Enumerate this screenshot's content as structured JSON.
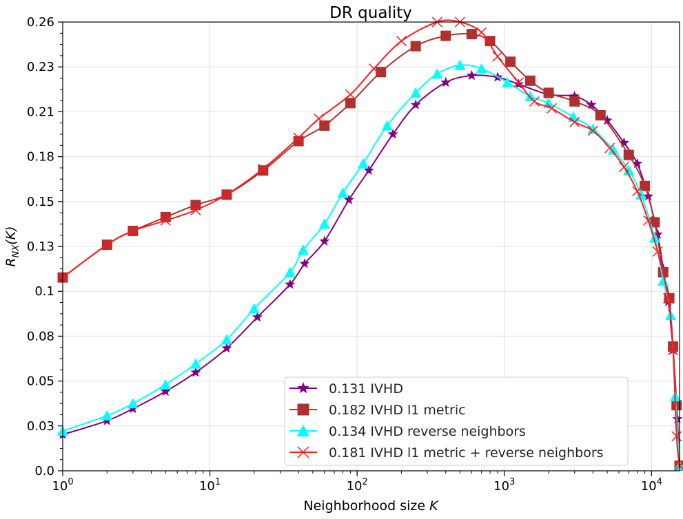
{
  "chart_data": {
    "type": "line",
    "title": "DR quality",
    "xlabel": "Neighborhood size K",
    "ylabel": "R_NX(K)",
    "xscale": "log",
    "xlim": [
      1,
      15500
    ],
    "ylim": [
      0.0,
      0.26
    ],
    "grid": true,
    "legend_position": "lower-right",
    "x_ticks": [
      {
        "value": 1,
        "base": "10",
        "exp": "0"
      },
      {
        "value": 10,
        "base": "10",
        "exp": "1"
      },
      {
        "value": 100,
        "base": "10",
        "exp": "2"
      },
      {
        "value": 1000,
        "base": "10",
        "exp": "3"
      },
      {
        "value": 10000,
        "base": "10",
        "exp": "4"
      }
    ],
    "y_ticks": [
      {
        "value": 0.0,
        "label": "0.0"
      },
      {
        "value": 0.026,
        "label": "0.03"
      },
      {
        "value": 0.052,
        "label": "0.05"
      },
      {
        "value": 0.078,
        "label": "0.08"
      },
      {
        "value": 0.104,
        "label": "0.1"
      },
      {
        "value": 0.13,
        "label": "0.13"
      },
      {
        "value": 0.156,
        "label": "0.15"
      },
      {
        "value": 0.182,
        "label": "0.18"
      },
      {
        "value": 0.208,
        "label": "0.21"
      },
      {
        "value": 0.234,
        "label": "0.23"
      },
      {
        "value": 0.26,
        "label": "0.26"
      }
    ],
    "series": [
      {
        "name": "0.131 IVHD",
        "color": "#800080",
        "marker": "star",
        "x": [
          1,
          2,
          3,
          5,
          8,
          13,
          21,
          35,
          44,
          60,
          88,
          120,
          175,
          250,
          400,
          600,
          900,
          1250,
          2000,
          3000,
          3900,
          5000,
          6500,
          8000,
          9500,
          11000,
          12000,
          13000,
          14000,
          15000,
          15500
        ],
        "y": [
          0.021,
          0.029,
          0.036,
          0.046,
          0.057,
          0.071,
          0.089,
          0.108,
          0.12,
          0.133,
          0.157,
          0.174,
          0.195,
          0.212,
          0.225,
          0.229,
          0.228,
          0.224,
          0.218,
          0.217,
          0.212,
          0.203,
          0.19,
          0.178,
          0.159,
          0.137,
          0.117,
          0.098,
          0.07,
          0.03,
          0.003
        ]
      },
      {
        "name": "0.182 IVHD l1 metric",
        "color": "#b03030",
        "marker": "square",
        "x": [
          1,
          2,
          3,
          5,
          8,
          13,
          23,
          40,
          60,
          90,
          145,
          250,
          400,
          600,
          800,
          1100,
          1500,
          2000,
          3000,
          4500,
          7000,
          9000,
          10500,
          12000,
          13200,
          14000,
          14800,
          15500
        ],
        "y": [
          0.112,
          0.131,
          0.139,
          0.147,
          0.154,
          0.16,
          0.174,
          0.191,
          0.2,
          0.213,
          0.231,
          0.246,
          0.252,
          0.253,
          0.249,
          0.237,
          0.226,
          0.219,
          0.214,
          0.206,
          0.183,
          0.165,
          0.144,
          0.115,
          0.1,
          0.072,
          0.038,
          0.003
        ]
      },
      {
        "name": "0.134 IVHD reverse neighbors",
        "color": "#00ffff",
        "marker": "triangle",
        "x": [
          1,
          2,
          3,
          5,
          8,
          13,
          20,
          35,
          43,
          60,
          80,
          110,
          160,
          250,
          350,
          500,
          700,
          1050,
          1500,
          2000,
          2950,
          4000,
          5500,
          7000,
          8500,
          10500,
          12000,
          13500,
          14500,
          15500
        ],
        "y": [
          0.023,
          0.032,
          0.039,
          0.05,
          0.062,
          0.076,
          0.094,
          0.115,
          0.128,
          0.143,
          0.161,
          0.178,
          0.2,
          0.219,
          0.23,
          0.235,
          0.233,
          0.225,
          0.217,
          0.213,
          0.205,
          0.198,
          0.186,
          0.174,
          0.16,
          0.135,
          0.11,
          0.09,
          0.043,
          0.003
        ]
      },
      {
        "name": "0.181 IVHD l1 metric + reverse neighbors",
        "color": "#ff1a1a",
        "marker": "x",
        "x": [
          1,
          2,
          3,
          5,
          8,
          13,
          23,
          40,
          55,
          90,
          130,
          200,
          350,
          500,
          700,
          900,
          1250,
          1600,
          2100,
          3000,
          4000,
          5200,
          6500,
          8000,
          9500,
          11000,
          13000,
          14000,
          14800,
          15500
        ],
        "y": [
          0.112,
          0.131,
          0.139,
          0.145,
          0.151,
          0.16,
          0.175,
          0.193,
          0.204,
          0.218,
          0.233,
          0.249,
          0.26,
          0.26,
          0.254,
          0.24,
          0.225,
          0.214,
          0.21,
          0.202,
          0.197,
          0.187,
          0.176,
          0.162,
          0.145,
          0.127,
          0.1,
          0.07,
          0.02,
          0.003
        ]
      }
    ]
  }
}
